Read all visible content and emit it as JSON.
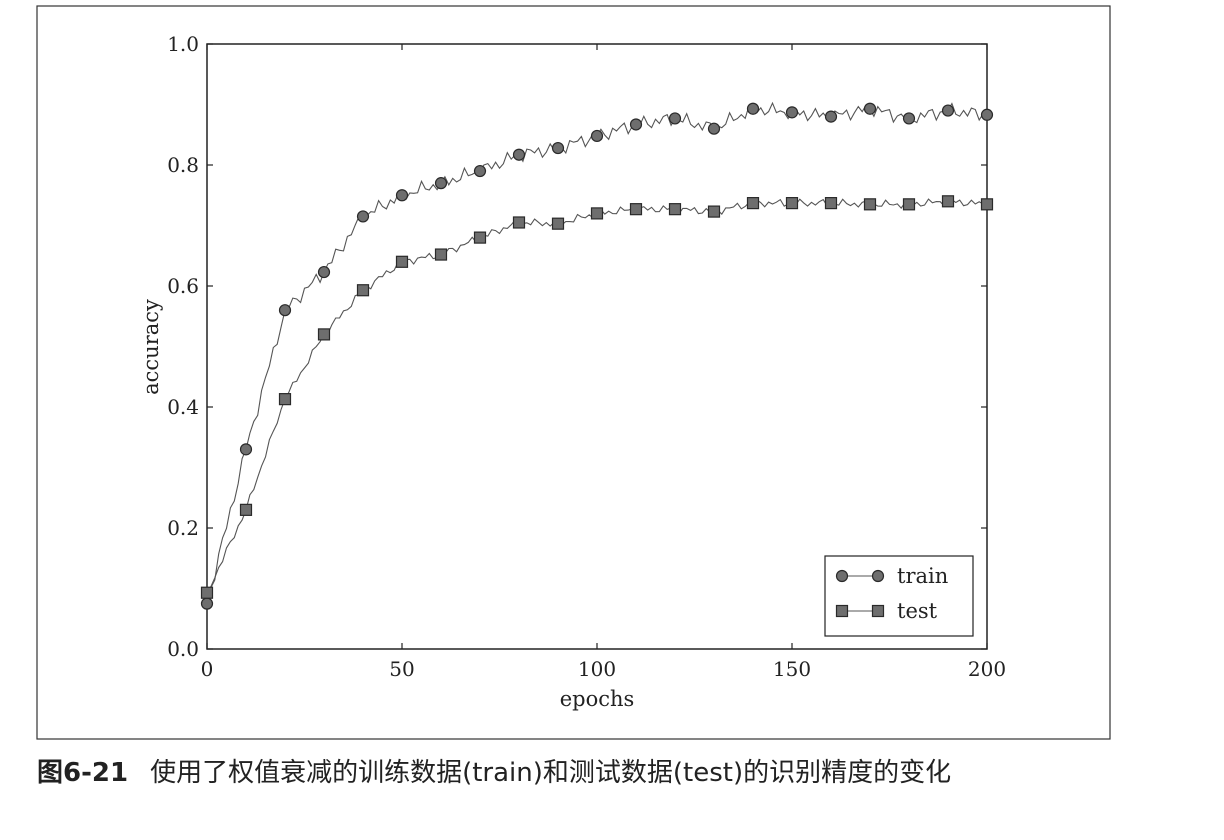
{
  "caption": {
    "number": "图6-21",
    "text": "使用了权值衰减的训练数据(train)和测试数据(test)的识别精度的变化"
  },
  "chart_data": {
    "type": "line",
    "xlabel": "epochs",
    "ylabel": "accuracy",
    "xlim": [
      0,
      200
    ],
    "ylim": [
      0.0,
      1.0
    ],
    "xticks": [
      "0",
      "50",
      "100",
      "150",
      "200"
    ],
    "yticks": [
      "0.0",
      "0.2",
      "0.4",
      "0.6",
      "0.8",
      "1.0"
    ],
    "legend_position": "lower-right",
    "grid": false,
    "colors": {
      "line": "#555555",
      "marker_fill": "#6e6e6e",
      "marker_edge": "#2a2a2a"
    },
    "series": [
      {
        "name": "train",
        "marker": "circle",
        "x": [
          0,
          10,
          20,
          30,
          40,
          50,
          60,
          70,
          80,
          90,
          100,
          110,
          120,
          130,
          140,
          150,
          160,
          170,
          180,
          190,
          200
        ],
        "values": [
          0.075,
          0.33,
          0.56,
          0.623,
          0.715,
          0.75,
          0.77,
          0.79,
          0.817,
          0.828,
          0.848,
          0.867,
          0.877,
          0.86,
          0.893,
          0.887,
          0.88,
          0.893,
          0.877,
          0.89,
          0.883
        ]
      },
      {
        "name": "test",
        "marker": "square",
        "x": [
          0,
          10,
          20,
          30,
          40,
          50,
          60,
          70,
          80,
          90,
          100,
          110,
          120,
          130,
          140,
          150,
          160,
          170,
          180,
          190,
          200
        ],
        "values": [
          0.093,
          0.23,
          0.413,
          0.52,
          0.593,
          0.64,
          0.652,
          0.68,
          0.705,
          0.703,
          0.72,
          0.727,
          0.727,
          0.723,
          0.737,
          0.737,
          0.737,
          0.735,
          0.735,
          0.74,
          0.735
        ]
      }
    ]
  }
}
